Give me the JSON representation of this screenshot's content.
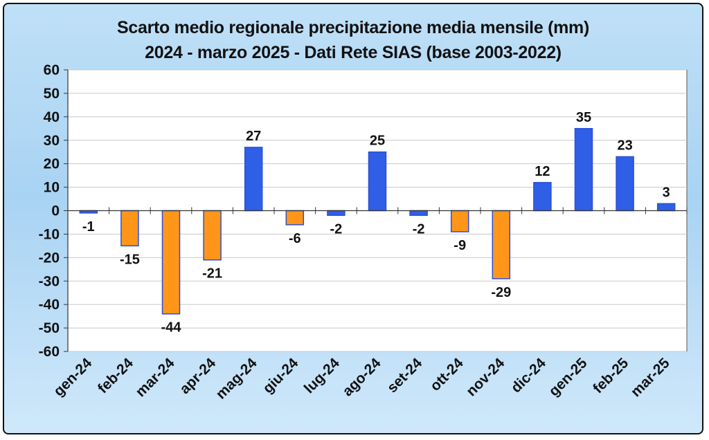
{
  "chart_data": {
    "type": "bar",
    "title": "Scarto medio regionale precipitazione media mensile (mm)",
    "subtitle": "2024 - marzo 2025 - Dati Rete SIAS (base 2003-2022)",
    "categories": [
      "gen-24",
      "feb-24",
      "mar-24",
      "apr-24",
      "mag-24",
      "giu-24",
      "lug-24",
      "ago-24",
      "set-24",
      "ott-24",
      "nov-24",
      "dic-24",
      "gen-25",
      "feb-25",
      "mar-25"
    ],
    "values": [
      -1,
      -15,
      -44,
      -21,
      27,
      -6,
      -2,
      25,
      -2,
      -9,
      -29,
      12,
      35,
      23,
      3
    ],
    "bar_colors": [
      "#2f5fe6",
      "#ff9619",
      "#ff9619",
      "#ff9619",
      "#2f5fe6",
      "#ff9619",
      "#2f5fe6",
      "#2f5fe6",
      "#2f5fe6",
      "#ff9619",
      "#ff9619",
      "#2f5fe6",
      "#2f5fe6",
      "#2f5fe6",
      "#2f5fe6"
    ],
    "ylim": [
      -60,
      60
    ],
    "yticks": [
      60,
      50,
      40,
      30,
      20,
      10,
      0,
      -10,
      -20,
      -30,
      -40,
      -50,
      -60
    ],
    "grid": true,
    "legend": "none",
    "xlabel": "",
    "ylabel": ""
  },
  "colors": {
    "background_top": "#bfe0f7",
    "plot_area": "#ffffff",
    "gridline": "#c8c8c8",
    "bar_edge": "#2b4fd6"
  }
}
